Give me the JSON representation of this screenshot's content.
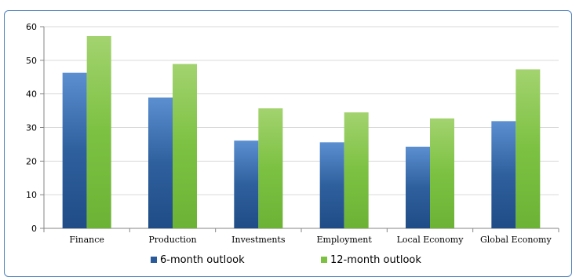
{
  "chart_data": {
    "type": "bar",
    "categories": [
      "Finance",
      "Production",
      "Investments",
      "Employment",
      "Local Economy",
      "Global Economy"
    ],
    "series": [
      {
        "name": "6-month outlook",
        "values": [
          46.3,
          38.9,
          26.1,
          25.6,
          24.3,
          31.9
        ],
        "color": "#2a5a9a"
      },
      {
        "name": "12-month outlook",
        "values": [
          57.2,
          48.9,
          35.7,
          34.5,
          32.7,
          47.3
        ],
        "color": "#7cc142"
      }
    ],
    "title": "",
    "xlabel": "",
    "ylabel": "",
    "ylim": [
      0,
      60
    ],
    "yticks": [
      0,
      10,
      20,
      30,
      40,
      50,
      60
    ],
    "grid": true,
    "legend": "bottom"
  }
}
